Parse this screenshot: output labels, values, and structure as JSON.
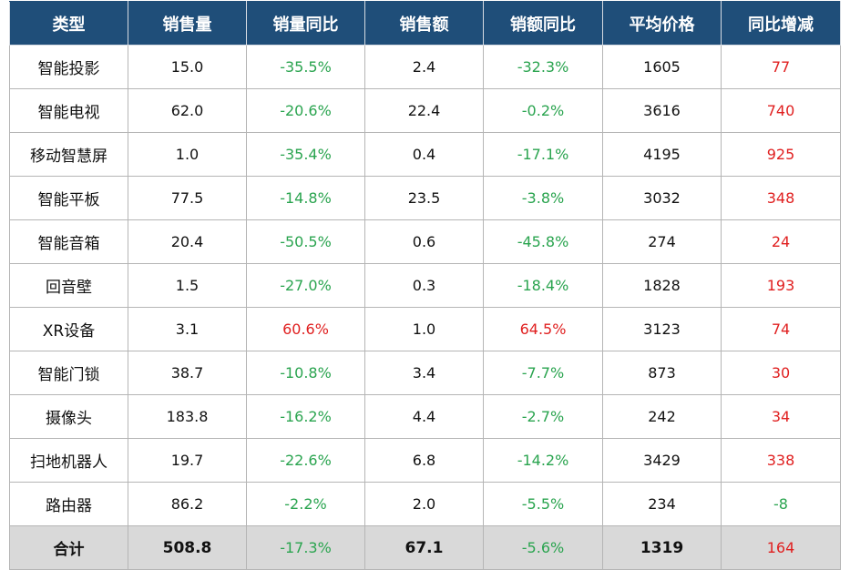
{
  "table": {
    "headers": [
      "类型",
      "销售量",
      "销量同比",
      "销售额",
      "销额同比",
      "平均价格",
      "同比增减"
    ],
    "rows": [
      [
        "智能投影",
        "15.0",
        "-35.5%",
        "2.4",
        "-32.3%",
        "1605",
        "77"
      ],
      [
        "智能电视",
        "62.0",
        "-20.6%",
        "22.4",
        "-0.2%",
        "3616",
        "740"
      ],
      [
        "移动智慧屏",
        "1.0",
        "-35.4%",
        "0.4",
        "-17.1%",
        "4195",
        "925"
      ],
      [
        "智能平板",
        "77.5",
        "-14.8%",
        "23.5",
        "-3.8%",
        "3032",
        "348"
      ],
      [
        "智能音箱",
        "20.4",
        "-50.5%",
        "0.6",
        "-45.8%",
        "274",
        "24"
      ],
      [
        "回音壁",
        "1.5",
        "-27.0%",
        "0.3",
        "-18.4%",
        "1828",
        "193"
      ],
      [
        "XR设备",
        "3.1",
        "60.6%",
        "1.0",
        "64.5%",
        "3123",
        "74"
      ],
      [
        "智能门锁",
        "38.7",
        "-10.8%",
        "3.4",
        "-7.7%",
        "873",
        "30"
      ],
      [
        "摄像头",
        "183.8",
        "-16.2%",
        "4.4",
        "-2.7%",
        "242",
        "34"
      ],
      [
        "扫地机器人",
        "19.7",
        "-22.6%",
        "6.8",
        "-14.2%",
        "3429",
        "338"
      ],
      [
        "路由器",
        "86.2",
        "-2.2%",
        "2.0",
        "-5.5%",
        "234",
        "-8"
      ]
    ],
    "total": [
      "合计",
      "508.8",
      "-17.3%",
      "67.1",
      "-5.6%",
      "1319",
      "164"
    ]
  },
  "colors": {
    "header_bg": "#1f4e79",
    "header_text": "#ffffff",
    "negative": "#2aa44f",
    "positive": "#e02020",
    "total_bg": "#d9d9d9"
  }
}
